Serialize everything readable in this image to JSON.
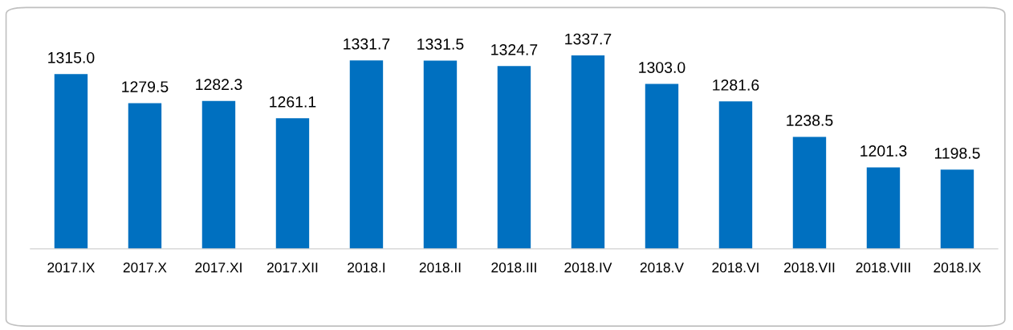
{
  "chart_data": {
    "type": "bar",
    "categories": [
      "2017.IX",
      "2017.X",
      "2017.XI",
      "2017.XII",
      "2018.I",
      "2018.II",
      "2018.III",
      "2018.IV",
      "2018.V",
      "2018.VI",
      "2018.VII",
      "2018.VIII",
      "2018.IX"
    ],
    "values": [
      1315.0,
      1279.5,
      1282.3,
      1261.1,
      1331.7,
      1331.5,
      1324.7,
      1337.7,
      1303.0,
      1281.6,
      1238.5,
      1201.3,
      1198.5
    ],
    "value_labels": [
      "1315.0",
      "1279.5",
      "1282.3",
      "1261.1",
      "1331.7",
      "1331.5",
      "1324.7",
      "1337.7",
      "1303.0",
      "1281.6",
      "1238.5",
      "1201.3",
      "1198.5"
    ],
    "color": "#0070c0",
    "ylim": [
      1102,
      1337.7
    ],
    "tick_labels": "x",
    "grid": false,
    "legend": false
  }
}
